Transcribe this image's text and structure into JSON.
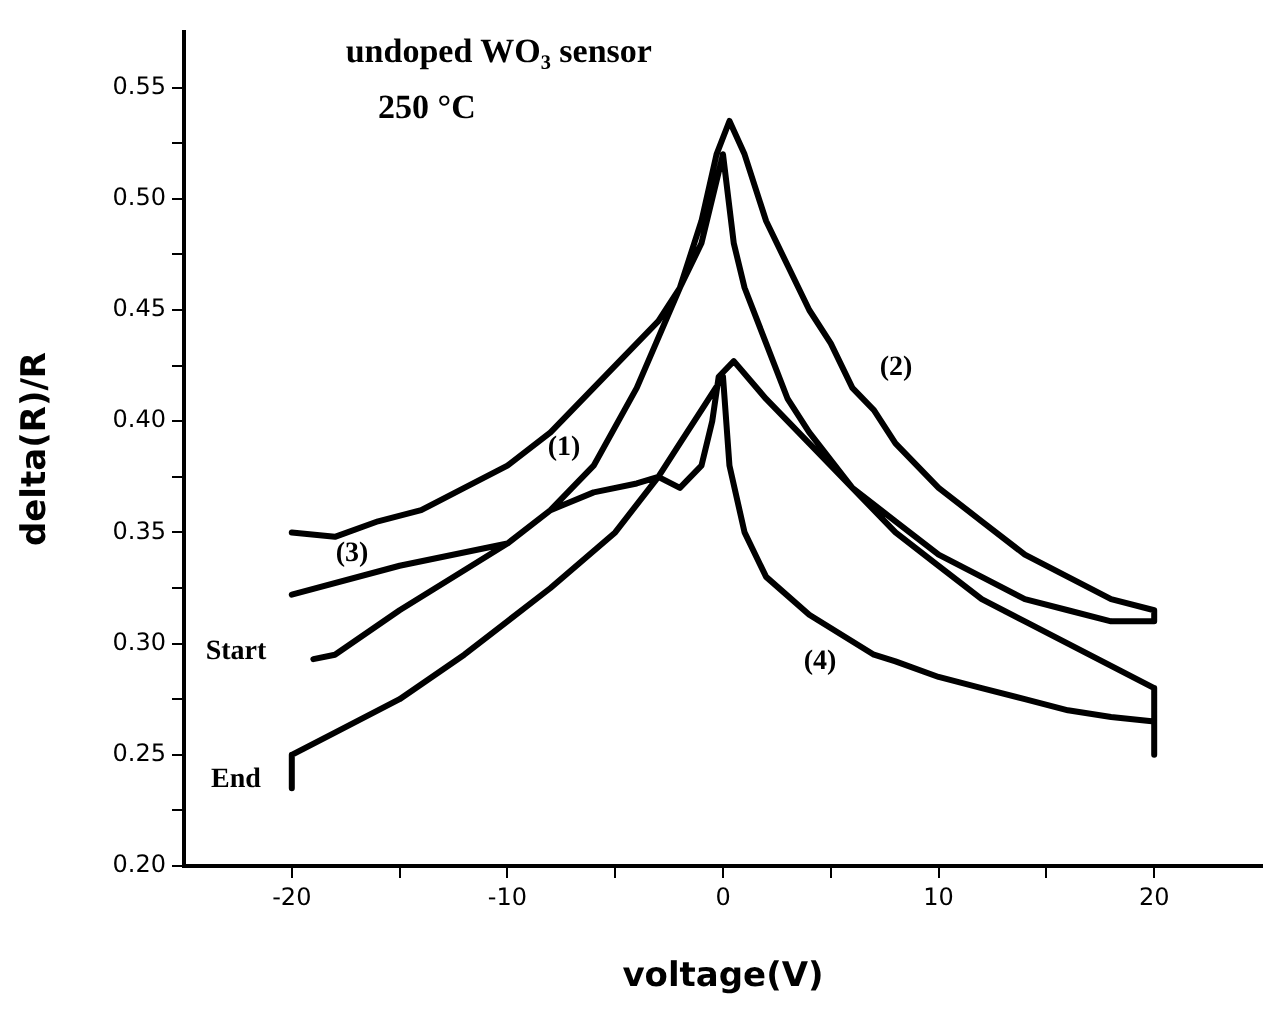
{
  "chart_data": {
    "type": "line",
    "title": "undoped WO₃ sensor",
    "subtitle": "250 °C",
    "xlabel": "voltage(V)",
    "ylabel": "delta(R)/R",
    "series": [
      {
        "color": "#000000",
        "x": [
          -19,
          -18,
          -15,
          -12,
          -10,
          -8,
          -6,
          -4,
          -2,
          -1,
          -0.3,
          0.3,
          1,
          2,
          3,
          4,
          5,
          6,
          7,
          8,
          10,
          12,
          14,
          16,
          18,
          20,
          20,
          18,
          16,
          14,
          12,
          10,
          8,
          6,
          4,
          3,
          2,
          1,
          0.5,
          0,
          -1,
          -2,
          -3,
          -4,
          -6,
          -8,
          -10,
          -12,
          -14,
          -16,
          -18,
          -20,
          null,
          -20,
          -15,
          -10,
          -8,
          -6,
          -4,
          -3,
          -2,
          -1,
          -0.5,
          -0.2,
          0.5,
          2,
          4,
          6,
          8,
          10,
          12,
          14,
          16,
          18,
          20,
          20,
          20,
          18,
          16,
          14,
          12,
          10,
          8,
          7,
          4,
          2,
          1,
          0.3,
          0,
          -1,
          -2,
          -3,
          -5,
          -8,
          -10,
          -12,
          -15,
          -18,
          -20,
          -20
        ],
        "values": [
          0.293,
          0.295,
          0.315,
          0.333,
          0.345,
          0.36,
          0.38,
          0.415,
          0.46,
          0.49,
          0.52,
          0.535,
          0.52,
          0.49,
          0.47,
          0.45,
          0.435,
          0.415,
          0.405,
          0.39,
          0.37,
          0.355,
          0.34,
          0.33,
          0.32,
          0.315,
          0.31,
          0.31,
          0.315,
          0.32,
          0.33,
          0.34,
          0.355,
          0.37,
          0.395,
          0.41,
          0.435,
          0.46,
          0.48,
          0.52,
          0.48,
          0.46,
          0.445,
          0.435,
          0.415,
          0.395,
          0.38,
          0.37,
          0.36,
          0.355,
          0.348,
          0.35,
          null,
          0.322,
          0.335,
          0.345,
          0.36,
          0.368,
          0.372,
          0.375,
          0.37,
          0.38,
          0.4,
          0.42,
          0.427,
          0.41,
          0.39,
          0.37,
          0.35,
          0.335,
          0.32,
          0.31,
          0.3,
          0.29,
          0.28,
          0.25,
          0.265,
          0.267,
          0.27,
          0.275,
          0.28,
          0.285,
          0.292,
          0.295,
          0.313,
          0.33,
          0.35,
          0.38,
          0.42,
          0.405,
          0.39,
          0.375,
          0.35,
          0.325,
          0.31,
          0.295,
          0.275,
          0.26,
          0.25,
          0.235
        ]
      }
    ],
    "annotations": [
      "(1)",
      "(2)",
      "(3)",
      "(4)",
      "Start",
      "End"
    ],
    "xlim": [
      -25,
      25
    ],
    "ylim": [
      0.2,
      0.575
    ],
    "xticks": [
      -20,
      {
        "value": -15,
        "label": null
      },
      -10,
      {
        "value": -5,
        "label": null
      },
      0,
      {
        "value": 5,
        "label": null
      },
      10,
      {
        "value": 15,
        "label": null
      },
      20
    ],
    "yticks": [
      {
        "value": 0.2,
        "label": "0.20"
      },
      {
        "value": 0.225,
        "label": null
      },
      {
        "value": 0.25,
        "label": "0.25"
      },
      {
        "value": 0.275,
        "label": null
      },
      {
        "value": 0.3,
        "label": "0.30"
      },
      {
        "value": 0.325,
        "label": null
      },
      {
        "value": 0.35,
        "label": "0.35"
      },
      {
        "value": 0.375,
        "label": null
      },
      {
        "value": 0.4,
        "label": "0.40"
      },
      {
        "value": 0.425,
        "label": null
      },
      {
        "value": 0.45,
        "label": "0.45"
      },
      {
        "value": 0.475,
        "label": null
      },
      {
        "value": 0.5,
        "label": "0.50"
      },
      {
        "value": 0.525,
        "label": null
      },
      {
        "value": 0.55,
        "label": "0.55"
      }
    ],
    "grid": false,
    "legend": false,
    "marker": "none",
    "line_style": "solid"
  }
}
